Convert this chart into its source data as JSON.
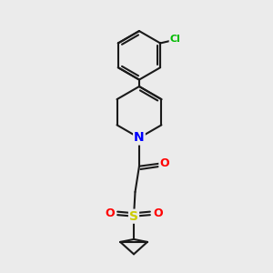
{
  "background_color": "#ebebeb",
  "bond_color": "#1a1a1a",
  "bond_width": 1.5,
  "N_color": "#0000ff",
  "S_color": "#cccc00",
  "O_color": "#ff0000",
  "Cl_color": "#00bb00",
  "font_size_atoms": 9,
  "fig_size": [
    3.0,
    3.0
  ],
  "dpi": 100,
  "xlim": [
    0,
    10
  ],
  "ylim": [
    0,
    10
  ]
}
